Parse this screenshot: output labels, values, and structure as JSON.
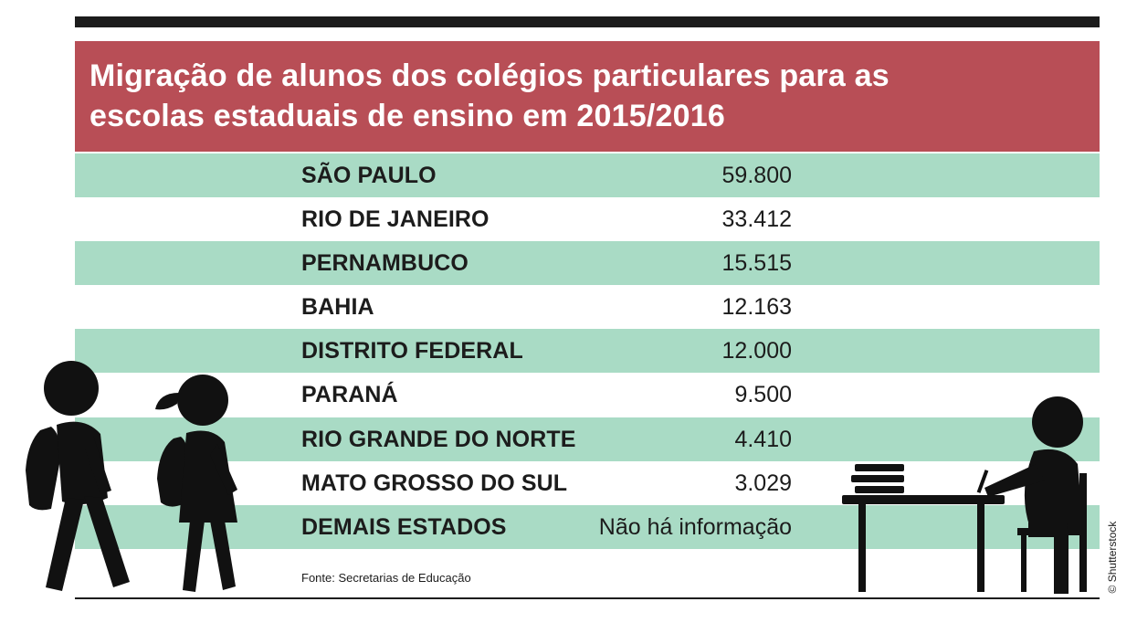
{
  "title": "Migração de alunos dos colégios particulares para as escolas estaduais de ensino em 2015/2016",
  "title_lines": [
    "Migração de alunos dos colégios particulares para as",
    "escolas estaduais de ensino em 2015/2016"
  ],
  "chart_data": {
    "type": "table",
    "title": "Migração de alunos dos colégios particulares para as escolas estaduais de ensino em 2015/2016",
    "rows": [
      {
        "state": "SÃO PAULO",
        "value": "59.800"
      },
      {
        "state": "RIO DE JANEIRO",
        "value": "33.412"
      },
      {
        "state": "PERNAMBUCO",
        "value": "15.515"
      },
      {
        "state": "BAHIA",
        "value": "12.163"
      },
      {
        "state": "DISTRITO FEDERAL",
        "value": "12.000"
      },
      {
        "state": "PARANÁ",
        "value": "9.500"
      },
      {
        "state": "RIO GRANDE DO NORTE",
        "value": "4.410"
      },
      {
        "state": "MATO GROSSO DO SUL",
        "value": "3.029"
      },
      {
        "state": "DEMAIS ESTADOS",
        "value": "Não há informação"
      }
    ],
    "source": "Fonte: Secretarias de Educação"
  },
  "credit": "© Shutterstock",
  "colors": {
    "title_band": "#b84e56",
    "stripe": "#a9dbc5",
    "ink": "#1c1c1c"
  },
  "icons": [
    "walking-student-boy-icon",
    "walking-student-girl-icon",
    "student-at-desk-icon"
  ]
}
